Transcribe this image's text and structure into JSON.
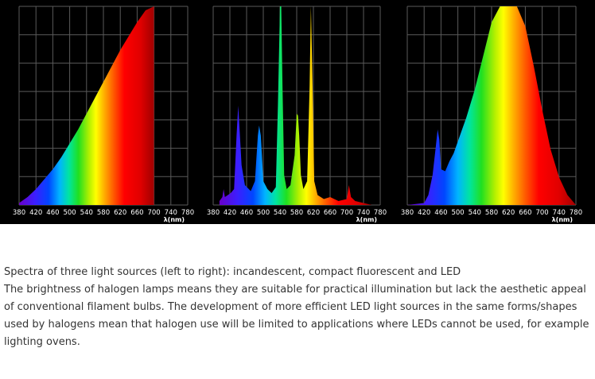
{
  "chart_data": [
    {
      "type": "area",
      "title": "",
      "xlabel": "λ(nm)",
      "xlim": [
        380,
        780
      ],
      "ylim": [
        0,
        1
      ],
      "grid": true,
      "ticks": [
        "380",
        "420",
        "460",
        "500",
        "540",
        "580",
        "620",
        "660",
        "700",
        "740",
        "780"
      ],
      "x": [
        380,
        400,
        420,
        440,
        460,
        480,
        500,
        520,
        540,
        560,
        580,
        600,
        620,
        640,
        660,
        680,
        700
      ],
      "values": [
        0.01,
        0.04,
        0.08,
        0.13,
        0.18,
        0.24,
        0.31,
        0.38,
        0.46,
        0.54,
        0.62,
        0.7,
        0.78,
        0.85,
        0.92,
        0.98,
        1.0
      ]
    },
    {
      "type": "area",
      "title": "",
      "xlabel": "λ(nm)",
      "xlim": [
        380,
        780
      ],
      "ylim": [
        0,
        1
      ],
      "grid": true,
      "ticks": [
        "380",
        "420",
        "460",
        "500",
        "540",
        "580",
        "620",
        "660",
        "700",
        "740",
        "780"
      ],
      "x": [
        395,
        402,
        405,
        408,
        415,
        422,
        430,
        436,
        440,
        448,
        456,
        470,
        480,
        487,
        490,
        494,
        500,
        510,
        520,
        530,
        535,
        540,
        543,
        546,
        550,
        556,
        565,
        575,
        580,
        583,
        586,
        590,
        596,
        605,
        611,
        614,
        618,
        622,
        630,
        645,
        660,
        680,
        700,
        705,
        710,
        720,
        740,
        760
      ],
      "values": [
        0.02,
        0.04,
        0.08,
        0.04,
        0.05,
        0.06,
        0.08,
        0.35,
        0.5,
        0.2,
        0.1,
        0.07,
        0.12,
        0.35,
        0.4,
        0.35,
        0.12,
        0.08,
        0.06,
        0.09,
        0.5,
        1.0,
        1.0,
        0.6,
        0.15,
        0.08,
        0.1,
        0.25,
        0.46,
        0.45,
        0.35,
        0.15,
        0.08,
        0.12,
        0.6,
        1.0,
        0.6,
        0.12,
        0.05,
        0.03,
        0.04,
        0.02,
        0.03,
        0.1,
        0.04,
        0.02,
        0.01,
        0.0
      ]
    },
    {
      "type": "area",
      "title": "",
      "xlabel": "λ(nm)",
      "xlim": [
        380,
        780
      ],
      "ylim": [
        0,
        1
      ],
      "grid": true,
      "ticks": [
        "380",
        "420",
        "460",
        "500",
        "540",
        "580",
        "620",
        "660",
        "700",
        "740",
        "780"
      ],
      "x": [
        380,
        420,
        430,
        440,
        448,
        452,
        456,
        460,
        470,
        480,
        490,
        500,
        520,
        540,
        560,
        580,
        600,
        620,
        640,
        660,
        680,
        700,
        720,
        740,
        760,
        780
      ],
      "values": [
        0.0,
        0.01,
        0.05,
        0.15,
        0.3,
        0.38,
        0.33,
        0.18,
        0.17,
        0.22,
        0.26,
        0.32,
        0.44,
        0.58,
        0.75,
        0.92,
        1.0,
        1.0,
        1.0,
        0.9,
        0.7,
        0.48,
        0.28,
        0.14,
        0.05,
        0.0
      ]
    }
  ],
  "caption": {
    "line1": "Spectra of three light sources (left to right): incandescent, compact fluorescent and LED",
    "body": "The brightness of halogen lamps means they are suitable for practical illumination but lack the aesthetic appeal of conventional filament bulbs. The development of more efficient LED light sources in the same forms/shapes used by halogens mean that halogen use will be limited to applications where LEDs cannot be used, for example lighting ovens."
  }
}
